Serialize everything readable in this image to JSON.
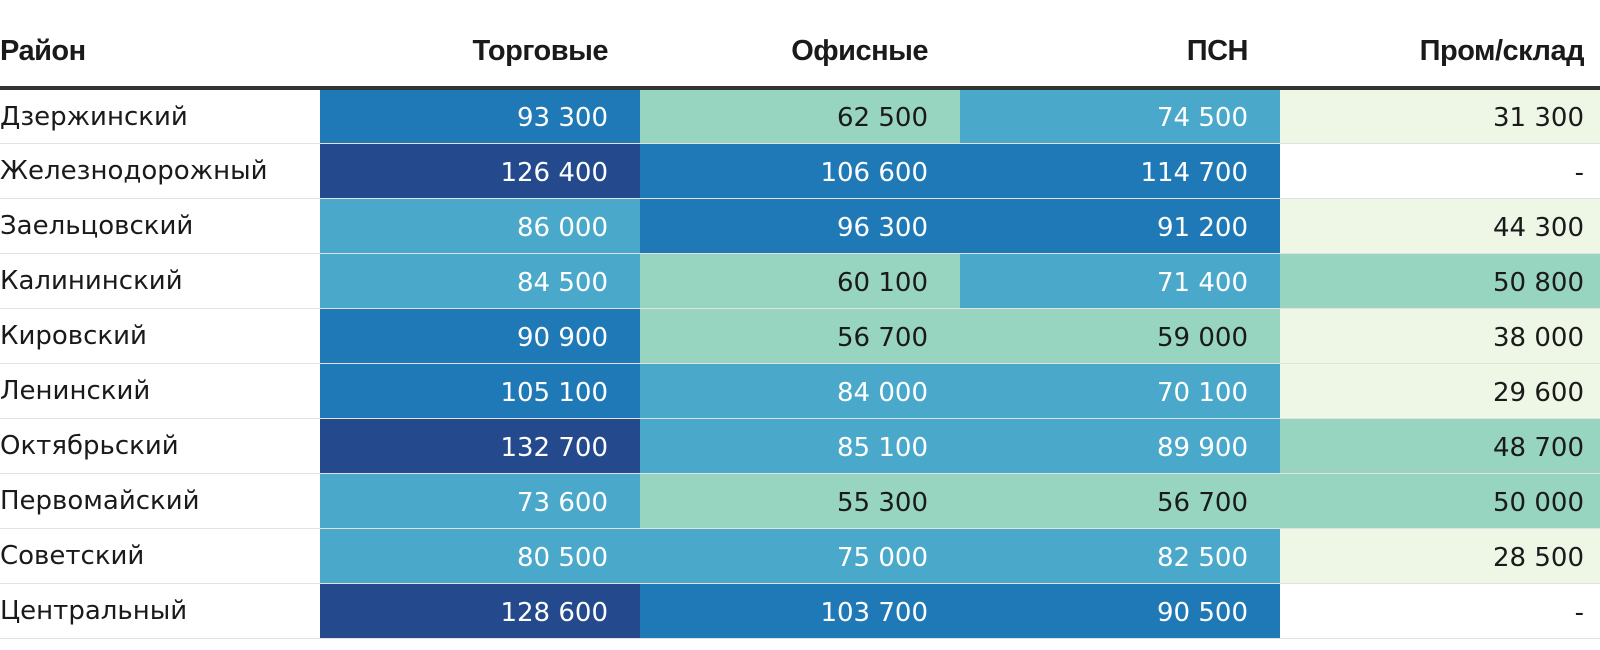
{
  "chart_data": {
    "type": "table",
    "columns": [
      "Район",
      "Торговые",
      "Офисные",
      "ПСН",
      "Пром/склад"
    ],
    "rows": [
      {
        "district": "Дзержинский",
        "values": [
          "93 300",
          "62 500",
          "74 500",
          "31 300"
        ]
      },
      {
        "district": "Железнодорожный",
        "values": [
          "126 400",
          "106 600",
          "114 700",
          "-"
        ]
      },
      {
        "district": "Заельцовский",
        "values": [
          "86 000",
          "96 300",
          "91 200",
          "44 300"
        ]
      },
      {
        "district": "Калининский",
        "values": [
          "84 500",
          "60 100",
          "71 400",
          "50 800"
        ]
      },
      {
        "district": "Кировский",
        "values": [
          "90 900",
          "56 700",
          "59 000",
          "38 000"
        ]
      },
      {
        "district": "Ленинский",
        "values": [
          "105 100",
          "84 000",
          "70 100",
          "29 600"
        ]
      },
      {
        "district": "Октябрьский",
        "values": [
          "132 700",
          "85 100",
          "89 900",
          "48 700"
        ]
      },
      {
        "district": "Первомайский",
        "values": [
          "73 600",
          "55 300",
          "56 700",
          "50 000"
        ]
      },
      {
        "district": "Советский",
        "values": [
          "80 500",
          "75 000",
          "82 500",
          "28 500"
        ]
      },
      {
        "district": "Центральный",
        "values": [
          "128 600",
          "103 700",
          "90 500",
          "-"
        ]
      }
    ],
    "color_scale": {
      "thresholds": [
        45000,
        65000,
        90000,
        115000
      ],
      "colors": [
        "#eef7e6",
        "#97d5c0",
        "#4aa8cb",
        "#1f79b7",
        "#244a8d"
      ],
      "text_light": "#ffffff",
      "text_dark": "#1a1a1a",
      "light_text_from_index": 2,
      "missing_bg": "#ffffff"
    }
  }
}
